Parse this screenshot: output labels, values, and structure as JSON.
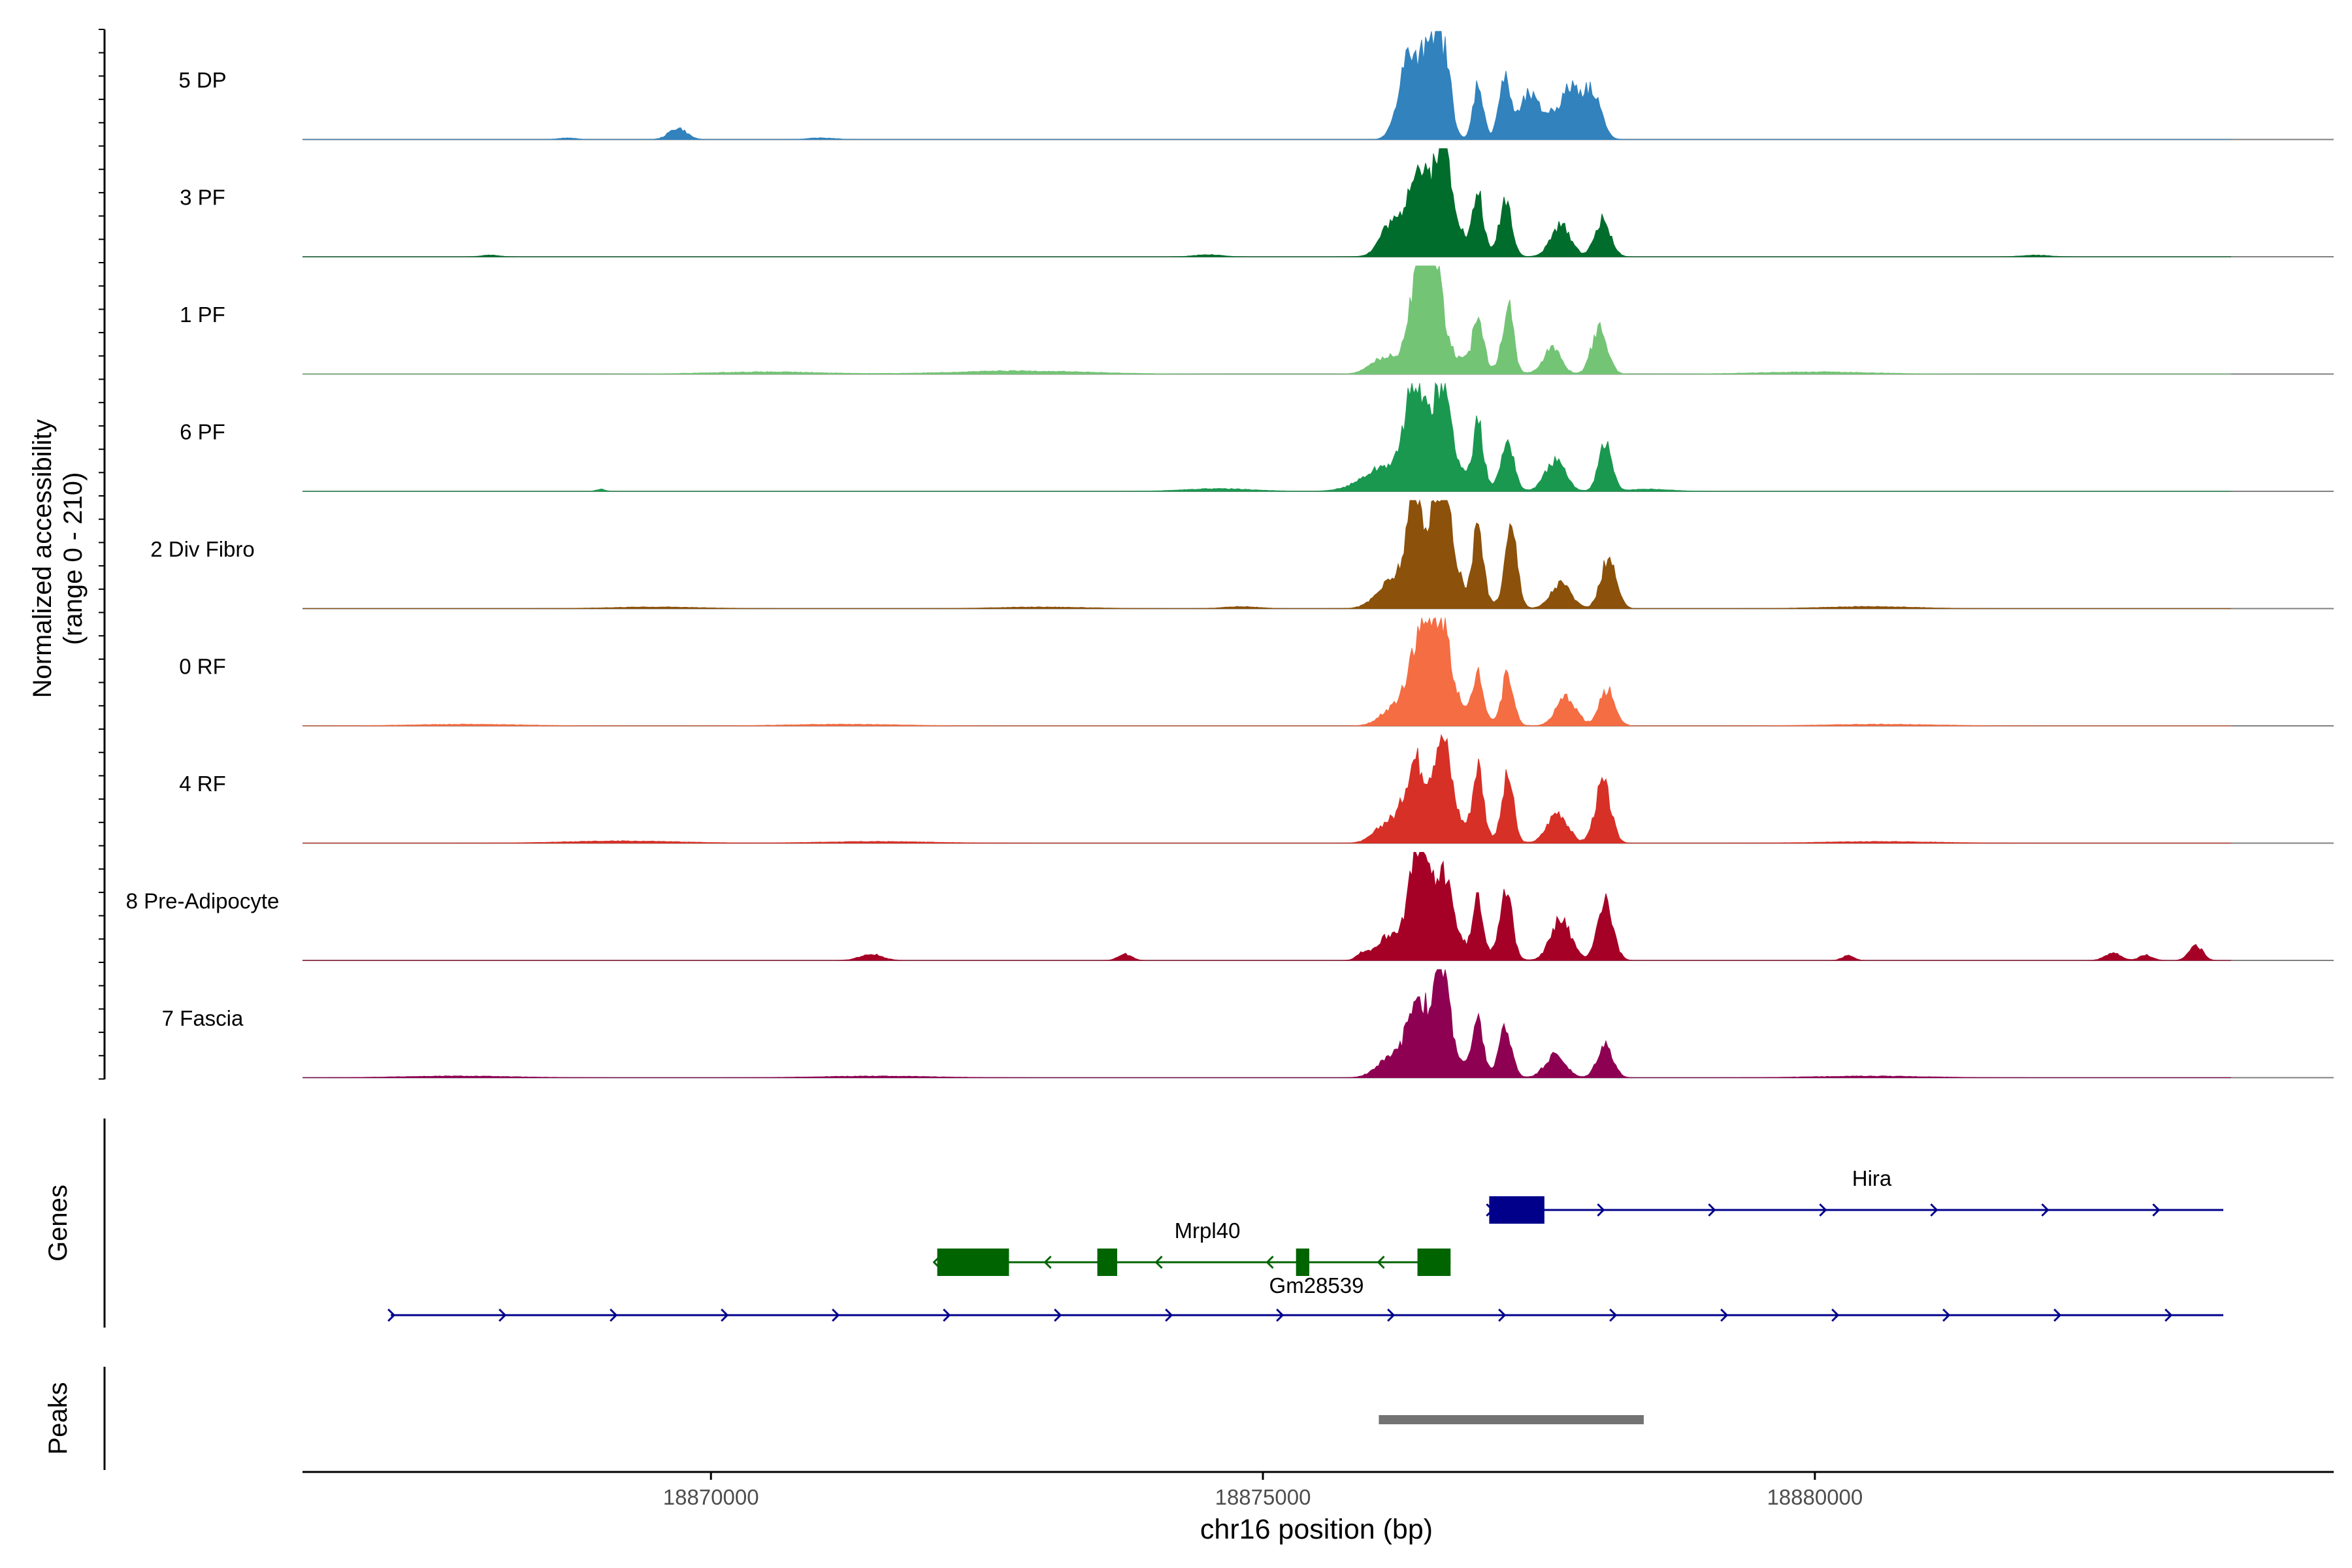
{
  "chart_data": {
    "type": "area",
    "title": "",
    "ylabel_line1": "Normalized accessibility",
    "ylabel_line2": "(range 0 - 210)",
    "ylim": [
      0,
      210
    ],
    "xlabel": "chr16 position (bp)",
    "xlim": [
      18866300,
      18884700
    ],
    "xticks": [
      {
        "value": 18870000,
        "label": "18870000"
      },
      {
        "value": 18875000,
        "label": "18875000"
      },
      {
        "value": 18880000,
        "label": "18880000"
      }
    ],
    "tracks": [
      {
        "name": "5 DP",
        "color": "#3182bd",
        "peaks": [
          [
            18876320,
            160,
            90
          ],
          [
            18876520,
            195,
            70
          ],
          [
            18876650,
            140,
            60
          ],
          [
            18876950,
            110,
            45
          ],
          [
            18877190,
            110,
            55
          ],
          [
            18877400,
            55,
            70
          ],
          [
            18877820,
            75,
            90
          ],
          [
            18878000,
            80,
            70
          ],
          [
            18877600,
            50,
            200
          ],
          [
            18869700,
            22,
            80
          ],
          [
            18868700,
            3,
            80
          ],
          [
            18871000,
            3,
            120
          ]
        ]
      },
      {
        "name": "3 PF",
        "color": "#006d2c",
        "peaks": [
          [
            18876380,
            140,
            80
          ],
          [
            18876620,
            185,
            90
          ],
          [
            18876950,
            110,
            45
          ],
          [
            18877200,
            110,
            55
          ],
          [
            18877700,
            60,
            90
          ],
          [
            18878080,
            72,
            70
          ],
          [
            18876150,
            55,
            90
          ],
          [
            18876600,
            40,
            260
          ],
          [
            18868000,
            3,
            80
          ],
          [
            18874500,
            4,
            120
          ],
          [
            18882000,
            3,
            120
          ]
        ]
      },
      {
        "name": "1 PF",
        "color": "#74c476",
        "peaks": [
          [
            18876420,
            190,
            90
          ],
          [
            18876550,
            160,
            80
          ],
          [
            18876950,
            95,
            45
          ],
          [
            18877220,
            125,
            50
          ],
          [
            18877620,
            50,
            80
          ],
          [
            18878050,
            90,
            70
          ],
          [
            18876100,
            30,
            120
          ],
          [
            18876700,
            30,
            280
          ],
          [
            18872800,
            6,
            600
          ],
          [
            18870500,
            4,
            500
          ],
          [
            18880000,
            4,
            500
          ]
        ]
      },
      {
        "name": "6 PF",
        "color": "#1a9850",
        "peaks": [
          [
            18876380,
            180,
            80
          ],
          [
            18876620,
            170,
            80
          ],
          [
            18876950,
            110,
            45
          ],
          [
            18877220,
            95,
            55
          ],
          [
            18877650,
            60,
            90
          ],
          [
            18878100,
            95,
            60
          ],
          [
            18876100,
            40,
            200
          ],
          [
            18876600,
            40,
            300
          ],
          [
            18869000,
            4,
            40
          ],
          [
            18874600,
            5,
            300
          ],
          [
            18878500,
            4,
            200
          ]
        ]
      },
      {
        "name": "2 Div Fibro",
        "color": "#8c510a",
        "peaks": [
          [
            18876380,
            170,
            80
          ],
          [
            18876620,
            200,
            85
          ],
          [
            18876950,
            140,
            45
          ],
          [
            18877250,
            155,
            55
          ],
          [
            18877700,
            50,
            90
          ],
          [
            18878130,
            95,
            70
          ],
          [
            18876150,
            40,
            120
          ],
          [
            18876600,
            45,
            280
          ],
          [
            18869500,
            3,
            400
          ],
          [
            18873000,
            3,
            400
          ],
          [
            18880500,
            4,
            400
          ],
          [
            18874800,
            4,
            150
          ]
        ]
      },
      {
        "name": "0 RF",
        "color": "#f46d43",
        "peaks": [
          [
            18876420,
            160,
            90
          ],
          [
            18876620,
            180,
            80
          ],
          [
            18876950,
            90,
            45
          ],
          [
            18877220,
            100,
            50
          ],
          [
            18877750,
            55,
            90
          ],
          [
            18878120,
            70,
            70
          ],
          [
            18876200,
            35,
            120
          ],
          [
            18876700,
            30,
            260
          ],
          [
            18867800,
            3,
            500
          ],
          [
            18871200,
            3,
            500
          ],
          [
            18880600,
            3,
            500
          ]
        ]
      },
      {
        "name": "4 RF",
        "color": "#d73027",
        "peaks": [
          [
            18876380,
            140,
            85
          ],
          [
            18876620,
            175,
            80
          ],
          [
            18876950,
            130,
            45
          ],
          [
            18877220,
            125,
            50
          ],
          [
            18877670,
            60,
            90
          ],
          [
            18878080,
            115,
            70
          ],
          [
            18876150,
            40,
            120
          ],
          [
            18876700,
            35,
            260
          ],
          [
            18869200,
            4,
            500
          ],
          [
            18871500,
            3,
            500
          ],
          [
            18880600,
            3,
            500
          ]
        ]
      },
      {
        "name": "8 Pre-Adipocyte",
        "color": "#a50026",
        "peaks": [
          [
            18876420,
            210,
            90
          ],
          [
            18876650,
            135,
            70
          ],
          [
            18876950,
            100,
            45
          ],
          [
            18877200,
            135,
            55
          ],
          [
            18877700,
            80,
            90
          ],
          [
            18878100,
            115,
            70
          ],
          [
            18876150,
            45,
            120
          ],
          [
            18876700,
            30,
            260
          ],
          [
            18871450,
            12,
            100
          ],
          [
            18873750,
            12,
            60
          ],
          [
            18875900,
            12,
            50
          ],
          [
            18882700,
            14,
            70
          ],
          [
            18883000,
            10,
            60
          ],
          [
            18883450,
            30,
            60
          ],
          [
            18880300,
            10,
            50
          ]
        ]
      },
      {
        "name": "7 Fascia",
        "color": "#8e0152",
        "peaks": [
          [
            18876400,
            140,
            90
          ],
          [
            18876620,
            185,
            70
          ],
          [
            18876950,
            90,
            45
          ],
          [
            18877200,
            90,
            55
          ],
          [
            18877650,
            45,
            90
          ],
          [
            18878100,
            65,
            70
          ],
          [
            18876150,
            35,
            120
          ],
          [
            18876700,
            30,
            260
          ],
          [
            18867700,
            3,
            500
          ],
          [
            18871500,
            3,
            500
          ],
          [
            18880500,
            3,
            500
          ]
        ]
      }
    ],
    "genes_label": "Genes",
    "genes": [
      {
        "name": "Hira",
        "color": "#00008b",
        "strand": "+",
        "start": 18877050,
        "end": 18883700,
        "exons": [
          [
            18877050,
            18877550
          ]
        ]
      },
      {
        "name": "Mrpl40",
        "color": "#006400",
        "strand": "-",
        "start": 18872050,
        "end": 18876700,
        "exons": [
          [
            18872050,
            18872700
          ],
          [
            18873500,
            18873680
          ],
          [
            18875300,
            18875420
          ],
          [
            18876400,
            18876700
          ]
        ]
      },
      {
        "name": "Gm28539",
        "color": "#00008b",
        "strand": "+",
        "start": 18867100,
        "end": 18883700,
        "exons": []
      }
    ],
    "peaks_label": "Peaks",
    "peak_regions": [
      {
        "start": 18876050,
        "end": 18878450,
        "color": "#737373"
      }
    ]
  }
}
